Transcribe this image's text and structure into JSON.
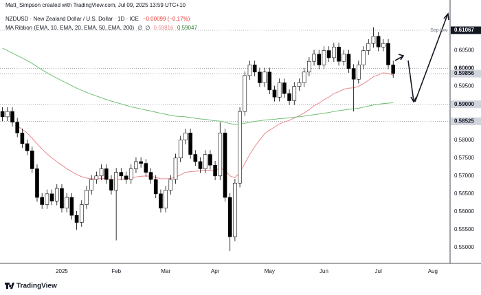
{
  "attribution": "Matt_Simpson created with TradingView.com, Jul 09, 2025 13:59 UTC+10",
  "footer": "TradingView",
  "chart_data": {
    "type": "candlestick",
    "title": "NZDUSD · New Zealand Dollar / U.S. Dollar · 1D · ICE",
    "change": "−0.00099 (−0.17%)",
    "indicator": "MA Ribbon (EMA, 10, EMA, 20, EMA, 50, EMA, 200)",
    "indicator_empty": [
      "∅",
      "∅"
    ],
    "categories": [
      null,
      null,
      null,
      null,
      null,
      null,
      null,
      null,
      null,
      null,
      null,
      null,
      "2025",
      null,
      null,
      null,
      null,
      null,
      null,
      null,
      null,
      null,
      null,
      "Feb",
      null,
      null,
      null,
      null,
      null,
      null,
      null,
      null,
      null,
      "Mar",
      null,
      null,
      null,
      null,
      null,
      null,
      null,
      null,
      null,
      "Apr",
      null,
      null,
      null,
      null,
      null,
      null,
      null,
      null,
      null,
      null,
      "May",
      null,
      null,
      null,
      null,
      null,
      null,
      null,
      null,
      null,
      null,
      "Jun",
      null,
      null,
      null,
      null,
      null,
      null,
      null,
      null,
      null,
      null,
      "Jul",
      null,
      null,
      null,
      null,
      null,
      null,
      null,
      null,
      null,
      null,
      "Aug",
      null,
      null,
      null
    ],
    "open": [
      0.588,
      0.5865,
      0.588,
      0.585,
      0.582,
      0.579,
      0.577,
      0.572,
      0.564,
      0.562,
      0.565,
      0.563,
      0.5665,
      0.561,
      0.564,
      0.559,
      0.557,
      0.562,
      0.566,
      0.569,
      0.57,
      0.572,
      0.569,
      0.566,
      0.571,
      0.57,
      0.569,
      0.572,
      0.574,
      0.5735,
      0.571,
      0.569,
      0.565,
      0.561,
      0.566,
      0.569,
      0.575,
      0.58,
      0.582,
      0.576,
      0.574,
      0.572,
      0.576,
      0.573,
      0.57,
      0.582,
      0.564,
      0.553,
      0.568,
      0.588,
      0.598,
      0.601,
      0.599,
      0.596,
      0.599,
      0.594,
      0.592,
      0.596,
      0.593,
      0.591,
      0.595,
      0.596,
      0.599,
      0.602,
      0.604,
      0.601,
      0.605,
      0.603,
      0.606,
      0.602,
      0.604,
      0.6,
      0.597,
      0.601,
      0.605,
      0.607,
      0.609,
      0.606,
      0.607,
      0.601,
      null,
      null,
      null,
      null,
      null,
      null,
      null,
      null,
      null,
      null,
      null
    ],
    "high": [
      0.5892,
      0.5892,
      0.5892,
      0.5862,
      0.5832,
      0.5802,
      0.5782,
      0.5732,
      0.5652,
      0.5662,
      0.5662,
      0.5677,
      0.5677,
      0.5652,
      0.5652,
      0.5602,
      0.5632,
      0.5672,
      0.5702,
      0.5712,
      0.5732,
      0.5732,
      0.5702,
      0.5722,
      0.5722,
      0.5712,
      0.5732,
      0.5752,
      0.5752,
      0.5747,
      0.5722,
      0.5702,
      0.5662,
      0.5672,
      0.5702,
      0.5762,
      0.5812,
      0.5832,
      0.5832,
      0.5772,
      0.5752,
      0.5772,
      0.5772,
      0.5742,
      0.585,
      0.5832,
      0.5652,
      0.5692,
      0.5892,
      0.5992,
      0.6022,
      0.6022,
      0.6002,
      0.6002,
      0.6002,
      0.5952,
      0.5972,
      0.5972,
      0.5942,
      0.5962,
      0.5972,
      0.6002,
      0.6032,
      0.6052,
      0.6052,
      0.6062,
      0.6062,
      0.6072,
      0.6072,
      0.6052,
      0.6052,
      0.6012,
      0.6022,
      0.6062,
      0.6082,
      0.6115,
      0.6102,
      0.6082,
      0.6082,
      0.6022,
      null,
      null,
      null,
      null,
      null,
      null,
      null,
      null,
      null,
      null,
      null
    ],
    "low": [
      0.5853,
      0.5853,
      0.5838,
      0.5808,
      0.5778,
      0.5758,
      0.5708,
      0.5628,
      0.5608,
      0.5608,
      0.5618,
      0.5618,
      0.5598,
      0.5598,
      0.5578,
      0.555,
      0.5558,
      0.5608,
      0.5648,
      0.5678,
      0.5688,
      0.5678,
      0.5648,
      0.552,
      0.5688,
      0.5678,
      0.5678,
      0.5708,
      0.5723,
      0.5698,
      0.5678,
      0.5638,
      0.5598,
      0.5598,
      0.5648,
      0.5678,
      0.5738,
      0.5788,
      0.5748,
      0.5728,
      0.5708,
      0.5708,
      0.5718,
      0.5688,
      0.5688,
      0.5628,
      0.549,
      0.5518,
      0.5668,
      0.5868,
      0.5968,
      0.5978,
      0.5948,
      0.5948,
      0.5928,
      0.5908,
      0.5908,
      0.5918,
      0.5898,
      0.5898,
      0.5938,
      0.5948,
      0.5978,
      0.6008,
      0.5998,
      0.5998,
      0.6018,
      0.6018,
      0.6008,
      0.6008,
      0.5988,
      0.588,
      0.5958,
      0.5998,
      0.6038,
      0.6058,
      0.6048,
      0.6048,
      0.5998,
      0.5974,
      null,
      null,
      null,
      null,
      null,
      null,
      null,
      null,
      null,
      null,
      null
    ],
    "close": [
      0.5865,
      0.588,
      0.585,
      0.582,
      0.579,
      0.577,
      0.572,
      0.564,
      0.562,
      0.565,
      0.563,
      0.5665,
      0.561,
      0.564,
      0.559,
      0.557,
      0.562,
      0.566,
      0.569,
      0.57,
      0.572,
      0.569,
      0.566,
      0.571,
      0.57,
      0.569,
      0.572,
      0.574,
      0.5735,
      0.571,
      0.569,
      0.565,
      0.561,
      0.566,
      0.569,
      0.575,
      0.58,
      0.582,
      0.576,
      0.574,
      0.572,
      0.576,
      0.573,
      0.57,
      0.582,
      0.564,
      0.553,
      0.568,
      0.588,
      0.598,
      0.601,
      0.599,
      0.596,
      0.599,
      0.594,
      0.592,
      0.596,
      0.593,
      0.591,
      0.595,
      0.596,
      0.599,
      0.602,
      0.604,
      0.601,
      0.605,
      0.603,
      0.606,
      0.602,
      0.604,
      0.6,
      0.597,
      0.601,
      0.605,
      0.607,
      0.609,
      0.606,
      0.607,
      0.601,
      0.5986,
      null,
      null,
      null,
      null,
      null,
      null,
      null,
      null,
      null,
      null,
      null
    ],
    "up_color": "#ffffff",
    "down_color": "#000000",
    "wick_color": "#000000",
    "series": [
      {
        "color": "#e8868a",
        "values": [
          null,
          null,
          null,
          0.584,
          0.583,
          0.582,
          0.5805,
          0.579,
          0.5775,
          0.5762,
          0.575,
          0.574,
          0.573,
          0.572,
          0.5712,
          0.5704,
          0.5698,
          0.5694,
          0.5692,
          0.5692,
          0.5693,
          0.5692,
          0.569,
          0.569,
          0.5691,
          0.5692,
          0.5694,
          0.5697,
          0.5699,
          0.57,
          0.5699,
          0.5696,
          0.5692,
          0.5692,
          0.5693,
          0.5697,
          0.5703,
          0.571,
          0.5712,
          0.5713,
          0.5714,
          0.5716,
          0.5716,
          0.5715,
          0.5722,
          0.5716,
          0.57,
          0.5695,
          0.571,
          0.5735,
          0.576,
          0.5782,
          0.58,
          0.5818,
          0.5828,
          0.5836,
          0.5845,
          0.5851,
          0.5855,
          0.5862,
          0.5868,
          0.5876,
          0.5885,
          0.5896,
          0.5903,
          0.5913,
          0.592,
          0.593,
          0.5935,
          0.5942,
          0.5945,
          0.5946,
          0.595,
          0.5958,
          0.5967,
          0.5977,
          0.5982,
          0.5988,
          0.5986,
          0.59816,
          null,
          null,
          null,
          null,
          null,
          null,
          null,
          null,
          null,
          null,
          null
        ]
      },
      {
        "color": "#6fbf73",
        "values": [
          0.6057,
          0.605,
          0.6043,
          0.6036,
          0.6029,
          0.6022,
          0.6014,
          0.6005,
          0.5996,
          0.5988,
          0.598,
          0.5973,
          0.5966,
          0.5959,
          0.5952,
          0.5945,
          0.5939,
          0.5933,
          0.5928,
          0.5923,
          0.5918,
          0.5913,
          0.5909,
          0.5905,
          0.5901,
          0.5897,
          0.5893,
          0.589,
          0.5887,
          0.5884,
          0.5881,
          0.5878,
          0.5875,
          0.5872,
          0.5869,
          0.5867,
          0.5866,
          0.5865,
          0.5863,
          0.5861,
          0.5859,
          0.5858,
          0.5856,
          0.5854,
          0.5853,
          0.585,
          0.5846,
          0.5844,
          0.5845,
          0.5847,
          0.585,
          0.5852,
          0.5854,
          0.5856,
          0.5857,
          0.5858,
          0.586,
          0.5861,
          0.5862,
          0.5864,
          0.5865,
          0.5867,
          0.5869,
          0.5871,
          0.5873,
          0.5875,
          0.5877,
          0.588,
          0.5882,
          0.5884,
          0.5886,
          0.5887,
          0.5889,
          0.5892,
          0.5895,
          0.5898,
          0.59,
          0.5902,
          0.5903,
          0.59047,
          null,
          null,
          null,
          null,
          null,
          null,
          null,
          null,
          null,
          null,
          null
        ]
      }
    ],
    "ylim": [
      0.54558,
      0.61912
    ],
    "yticks": [
      {
        "value": 0.55,
        "label": "0.55000"
      },
      {
        "value": 0.555,
        "label": "0.55500"
      },
      {
        "value": 0.56,
        "label": "0.56000"
      },
      {
        "value": 0.565,
        "label": "0.56500"
      },
      {
        "value": 0.57,
        "label": "0.57000"
      },
      {
        "value": 0.575,
        "label": "0.57500"
      },
      {
        "value": 0.58,
        "label": "0.58000"
      },
      {
        "value": 0.595,
        "label": "0.59500"
      },
      {
        "value": 0.605,
        "label": "0.60500"
      }
    ],
    "grid": false,
    "levels": [
      {
        "value": 0.61067,
        "label": "0.61067",
        "color": "#131722",
        "note": "Sep low"
      },
      {
        "value": 0.6,
        "label": "0.60000",
        "color": "#ffffff"
      },
      {
        "value": 0.59856,
        "label": "0.59856",
        "color": "#d1d4dc"
      },
      {
        "value": 0.59,
        "label": "0.59000",
        "color": "#d1d4dc"
      },
      {
        "value": 0.58525,
        "label": "0.58525",
        "color": "#d1d4dc"
      }
    ]
  }
}
